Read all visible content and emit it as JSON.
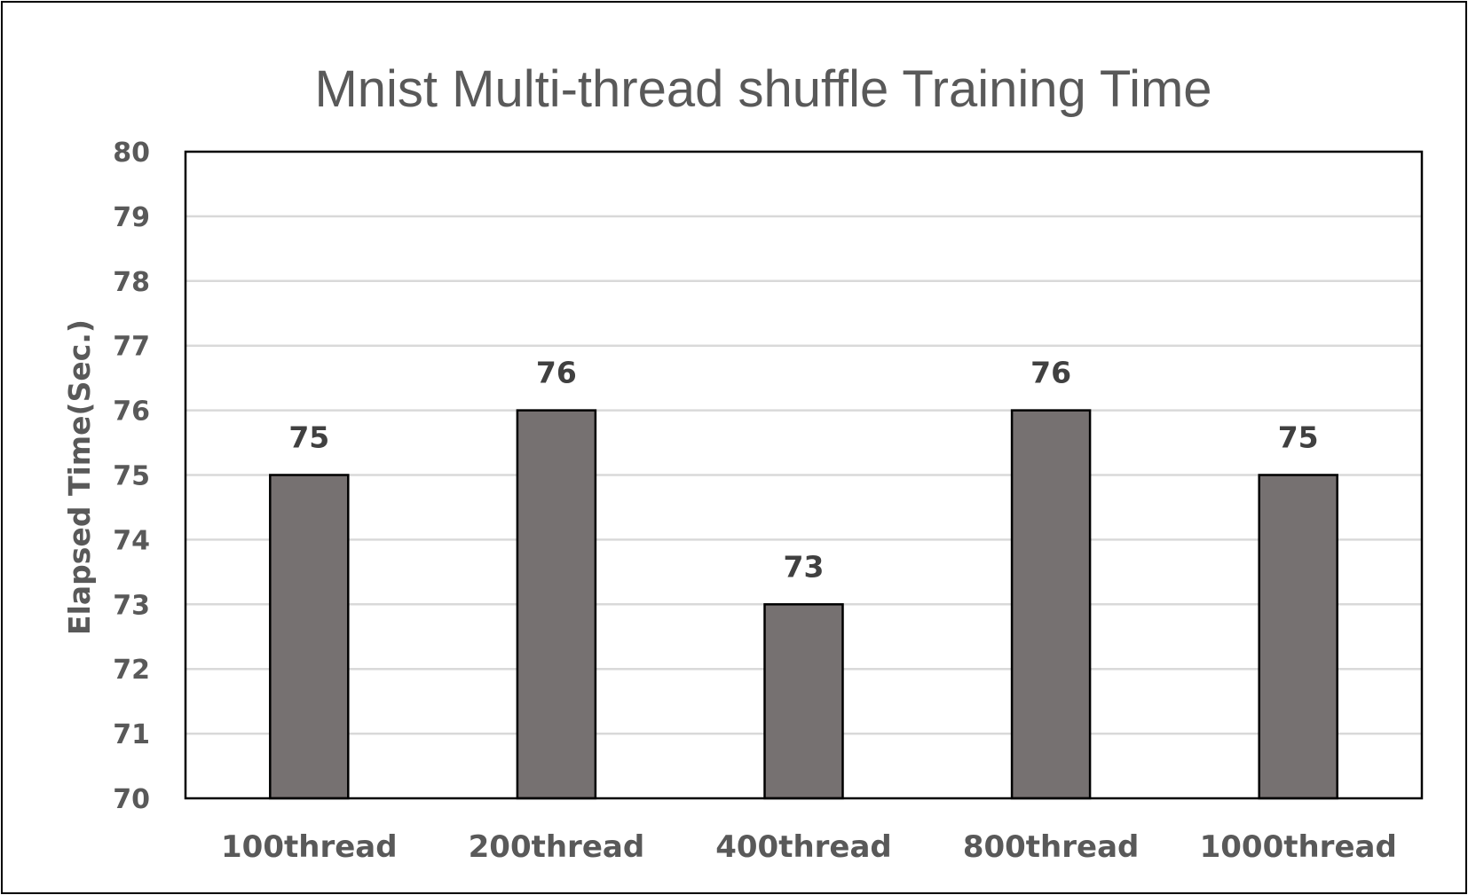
{
  "chart_data": {
    "type": "bar",
    "title": "Mnist Multi-thread shuffle Training Time",
    "xlabel": "",
    "ylabel": "Elapsed Time(Sec.)",
    "categories": [
      "100thread",
      "200thread",
      "400thread",
      "800thread",
      "1000thread"
    ],
    "values": [
      75,
      76,
      73,
      76,
      75
    ],
    "data_labels": [
      "75",
      "76",
      "73",
      "76",
      "75"
    ],
    "ylim": [
      70,
      80
    ],
    "yticks": [
      "70",
      "71",
      "72",
      "73",
      "74",
      "75",
      "76",
      "77",
      "78",
      "79",
      "80"
    ],
    "grid": true,
    "legend": "none",
    "colors": {
      "bar_fill": "#767171",
      "bar_stroke": "#000000",
      "gridline": "#d9d9d9",
      "plot_border": "#000000",
      "text": "#595959",
      "data_label": "#404040"
    }
  }
}
